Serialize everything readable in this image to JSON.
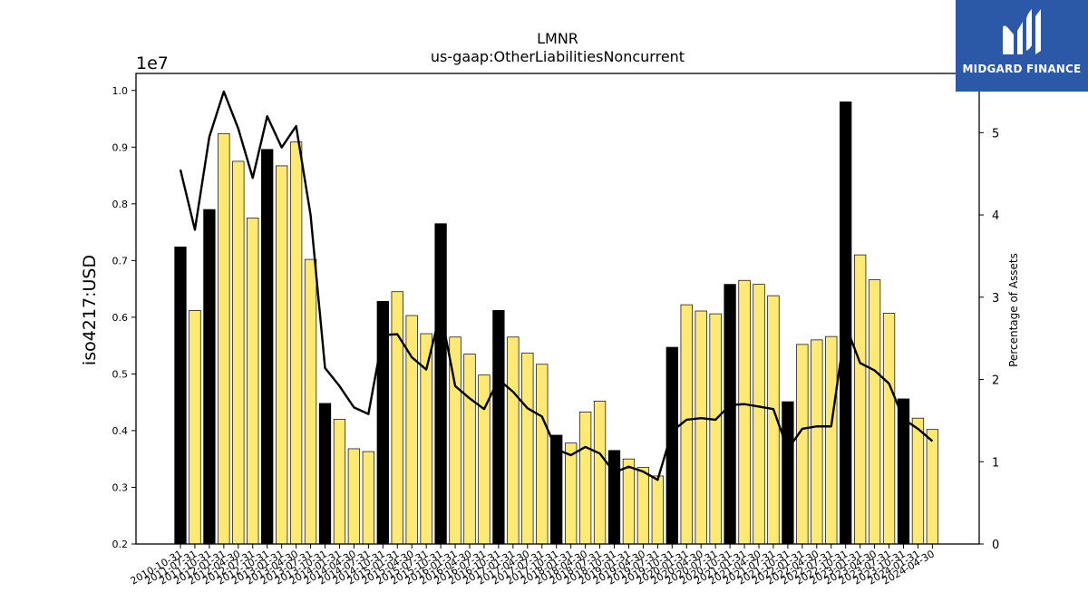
{
  "chart_data": {
    "type": "bar",
    "title": "LMNR",
    "subtitle": "us-gaap:OtherLiabilitiesNoncurrent",
    "ylabel": "iso4217:USD",
    "y2label": "Percentage of Assets",
    "y_offset_label": "1e7",
    "ylim": [
      0.2,
      1.03
    ],
    "y2lim": [
      0,
      5.72
    ],
    "y_ticks": [
      "0.2",
      "0.3",
      "0.4",
      "0.5",
      "0.6",
      "0.7",
      "0.8",
      "0.9",
      "1.0"
    ],
    "y2_ticks": [
      "0",
      "1",
      "2",
      "3",
      "4",
      "5"
    ],
    "categories": [
      "2010-10-31",
      "2011-07-31",
      "2011-10-31",
      "2012-01-31",
      "2012-04-30",
      "2012-07-31",
      "2012-10-31",
      "2013-01-31",
      "2013-04-30",
      "2013-07-31",
      "2013-10-31",
      "2014-01-31",
      "2014-04-30",
      "2014-07-31",
      "2014-10-31",
      "2015-01-31",
      "2015-04-30",
      "2015-07-31",
      "2015-10-31",
      "2016-01-31",
      "2016-04-30",
      "2016-07-31",
      "2016-10-31",
      "2017-01-31",
      "2017-04-30",
      "2017-07-31",
      "2017-10-31",
      "2018-01-31",
      "2018-04-30",
      "2018-07-31",
      "2018-10-31",
      "2019-01-31",
      "2019-04-30",
      "2019-07-31",
      "2019-10-31",
      "2020-01-31",
      "2020-04-30",
      "2020-07-31",
      "2020-10-31",
      "2021-01-31",
      "2021-04-30",
      "2021-07-31",
      "2021-10-31",
      "2022-01-31",
      "2022-04-30",
      "2022-07-31",
      "2022-10-31",
      "2023-01-31",
      "2023-04-30",
      "2023-07-31",
      "2023-10-31",
      "2024-01-31",
      "2024-04-30"
    ],
    "series": [
      {
        "type": "bar",
        "values": [
          0.724,
          0.612,
          0.79,
          0.924,
          0.875,
          0.775,
          0.896,
          0.867,
          0.909,
          0.702,
          0.448,
          0.42,
          0.368,
          0.363,
          0.628,
          0.645,
          0.603,
          0.571,
          0.765,
          0.565,
          0.535,
          0.498,
          0.612,
          0.565,
          0.537,
          0.517,
          0.392,
          0.378,
          0.433,
          0.452,
          0.365,
          0.35,
          0.335,
          0.32,
          0.547,
          0.622,
          0.611,
          0.606,
          0.658,
          0.665,
          0.658,
          0.638,
          0.451,
          0.552,
          0.56,
          0.566,
          0.98,
          0.71,
          0.666,
          0.607,
          0.456,
          0.422,
          0.402
        ],
        "colors_note": "fiscal year-end (October) bars black, others yellow"
      },
      {
        "type": "line",
        "values": [
          4.55,
          3.82,
          4.95,
          5.5,
          5.05,
          4.45,
          5.2,
          4.82,
          5.08,
          4.0,
          2.14,
          1.92,
          1.66,
          1.58,
          2.54,
          2.55,
          2.27,
          2.12,
          2.83,
          1.92,
          1.77,
          1.64,
          2.0,
          1.85,
          1.65,
          1.55,
          1.15,
          1.08,
          1.18,
          1.1,
          0.87,
          0.94,
          0.88,
          0.78,
          1.37,
          1.51,
          1.53,
          1.51,
          1.69,
          1.7,
          1.67,
          1.64,
          1.15,
          1.4,
          1.43,
          1.43,
          2.66,
          2.2,
          2.11,
          1.95,
          1.52,
          1.4,
          1.25
        ]
      }
    ],
    "colors": {
      "bar_default": "#fde974",
      "bar_highlight": "#000000",
      "line": "#000000",
      "logo_bg": "#2b59a8"
    },
    "grid": false
  },
  "logo": {
    "text": "MIDGARD FINANCE",
    "icon": "midgard-logo-icon"
  }
}
